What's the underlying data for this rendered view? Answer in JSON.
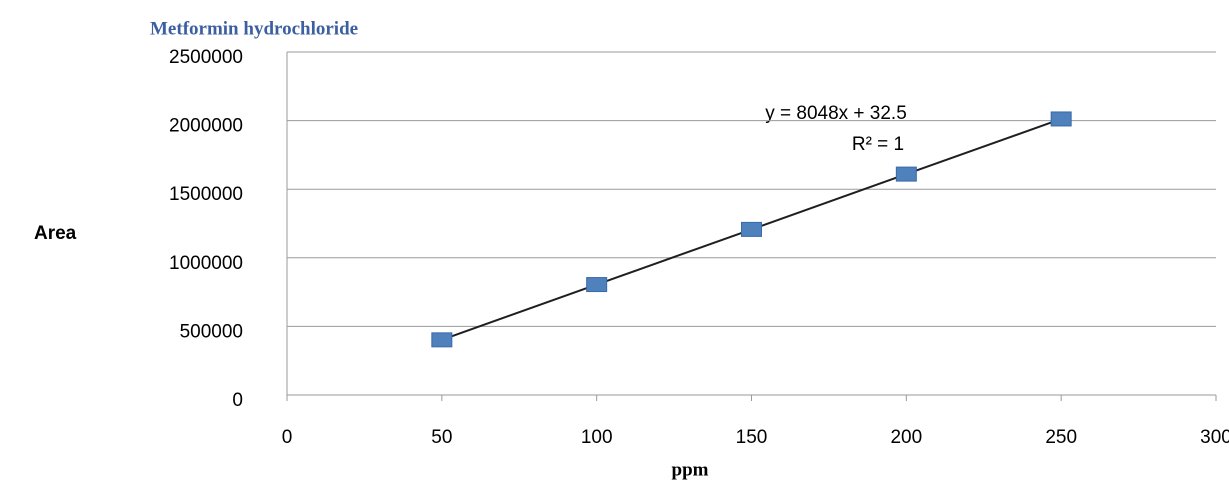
{
  "chart_data": {
    "type": "scatter",
    "title": "Metformin hydrochloride",
    "x_label": "ppm",
    "y_label": "Area",
    "annotations": [
      "y = 8048x + 32.5",
      "R² = 1"
    ],
    "x": [
      50,
      100,
      150,
      200,
      250
    ],
    "series": [
      {
        "color": "#4f81bd",
        "values": [
          402000,
          805000,
          1207000,
          1610000,
          2012000
        ]
      }
    ],
    "trendline": true,
    "trendline_color": "#1f1f1f",
    "xlim": [
      0,
      300
    ],
    "xticks": [
      0,
      50,
      100,
      150,
      200,
      250,
      300
    ],
    "ylim": [
      0,
      2500000
    ],
    "yticks": [
      0,
      500000,
      1000000,
      1500000,
      2000000,
      2500000
    ],
    "grid": true
  }
}
